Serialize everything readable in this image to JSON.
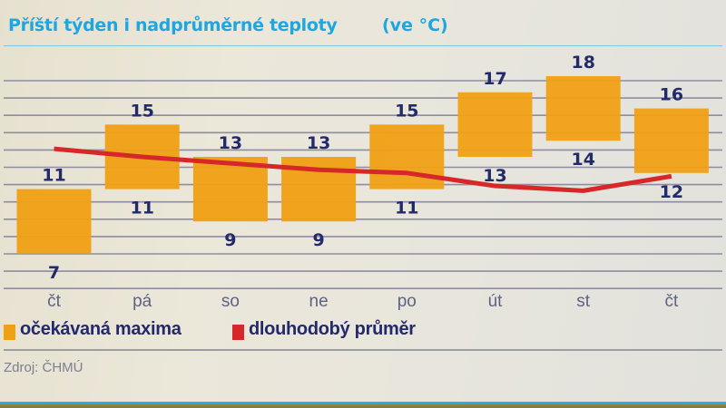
{
  "header": {
    "title": "Příští týden i nadprůměrné teploty",
    "unit": "(ve °C)"
  },
  "colors": {
    "title": "#1ea7df",
    "bar": "#f0a014",
    "line": "#d62828",
    "value_label": "#232a6b",
    "gridline": "#8e8da0"
  },
  "legend": {
    "items": [
      {
        "label": "očekávaná maxima",
        "color": "#f0a014"
      },
      {
        "label": "dlouhodobý průměr",
        "color": "#d62828"
      }
    ]
  },
  "source": "Zdroj: ČHMÚ",
  "chart_data": {
    "type": "bar",
    "subtype": "floating-range-bar-with-line",
    "title": "Příští týden i nadprůměrné teploty",
    "subtitle": "(ve °C)",
    "xlabel": "",
    "ylabel": "°C",
    "categories": [
      "čt",
      "pá",
      "so",
      "ne",
      "po",
      "út",
      "st",
      "čt"
    ],
    "series": [
      {
        "name": "očekávaná maxima",
        "type": "range-bar",
        "low": [
          7,
          11,
          9,
          9,
          11,
          13,
          14,
          12
        ],
        "high": [
          11,
          15,
          13,
          13,
          15,
          17,
          18,
          16
        ]
      },
      {
        "name": "dlouhodobý průměr",
        "type": "line",
        "values": [
          13.5,
          13.0,
          12.6,
          12.2,
          12.0,
          11.2,
          10.9,
          11.8
        ]
      }
    ],
    "ylim": [
      5,
      20
    ],
    "grid": true,
    "legend_position": "bottom-left",
    "source": "Zdroj: ČHMÚ"
  }
}
